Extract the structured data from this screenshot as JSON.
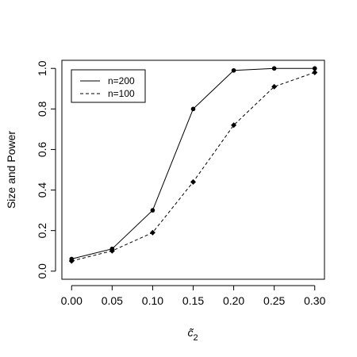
{
  "chart_data": {
    "type": "line",
    "title": "",
    "xlabel": "c̃",
    "xlabel_subscript": "2",
    "ylabel": "Size and Power",
    "x": [
      0.0,
      0.05,
      0.1,
      0.15,
      0.2,
      0.25,
      0.3
    ],
    "x_tick_labels": [
      "0.00",
      "0.05",
      "0.10",
      "0.15",
      "0.20",
      "0.25",
      "0.30"
    ],
    "y_ticks": [
      0.0,
      0.2,
      0.4,
      0.6,
      0.8,
      1.0
    ],
    "y_tick_labels": [
      "0.0",
      "0.2",
      "0.4",
      "0.6",
      "0.8",
      "1.0"
    ],
    "xlim": [
      -0.012,
      0.312
    ],
    "ylim": [
      -0.04,
      1.04
    ],
    "grid": false,
    "legend_position": "top-left",
    "series": [
      {
        "name": "n=200",
        "line_style": "solid",
        "marker": "circle",
        "values": [
          0.06,
          0.11,
          0.3,
          0.8,
          0.99,
          1.0,
          1.0
        ]
      },
      {
        "name": "n=100",
        "line_style": "dashed",
        "marker": "diamond",
        "values": [
          0.05,
          0.1,
          0.19,
          0.44,
          0.72,
          0.91,
          0.98
        ]
      }
    ]
  }
}
